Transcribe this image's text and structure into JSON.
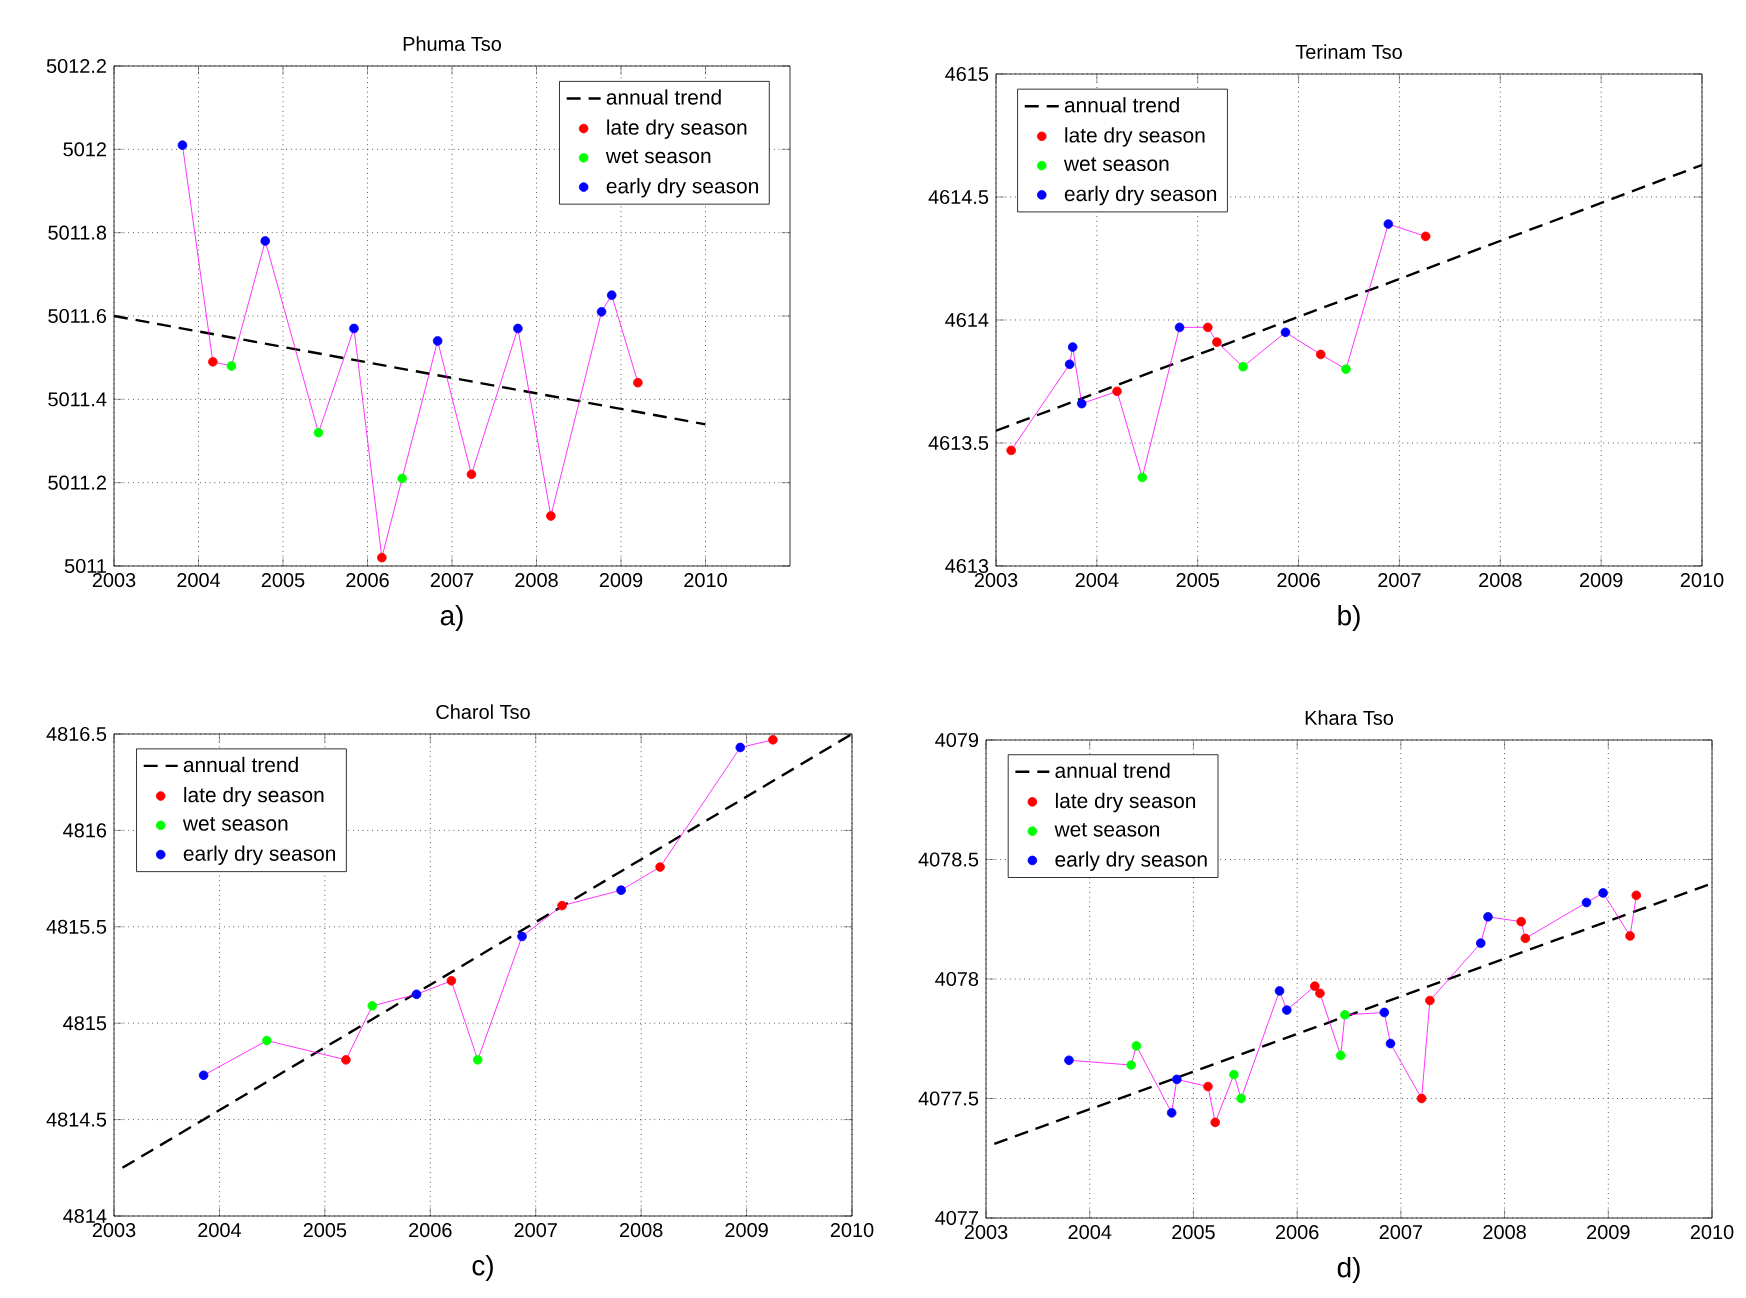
{
  "chart_data": [
    {
      "type": "line",
      "title": "Phuma Tso",
      "annotations": [
        "a)"
      ],
      "xlim": [
        2003,
        2011
      ],
      "ylim": [
        5011,
        5012.2
      ],
      "xticks": [
        2003,
        2004,
        2005,
        2006,
        2007,
        2008,
        2009,
        2010
      ],
      "yticks": [
        5011,
        5011.2,
        5011.4,
        5011.6,
        5011.8,
        5012,
        5012.2
      ],
      "grid": true,
      "legend": "top right",
      "series": [
        {
          "name": "annual trend",
          "type": "line",
          "color": "#000000",
          "line_style": "dashed",
          "marker": "none",
          "x": [
            2003,
            2010
          ],
          "values": [
            5011.6,
            5011.34
          ]
        },
        {
          "type": "line",
          "color": "#ff00ff",
          "line_style": "solid",
          "marker": "none",
          "x": [
            2003.81,
            2004.17,
            2004.39,
            2004.79,
            2005.42,
            2005.84,
            2006.17,
            2006.41,
            2006.83,
            2007.23,
            2007.78,
            2008.17,
            2008.77,
            2008.89,
            2009.2
          ],
          "values": [
            5012.01,
            5011.49,
            5011.48,
            5011.78,
            5011.32,
            5011.57,
            5011.02,
            5011.21,
            5011.54,
            5011.22,
            5011.57,
            5011.12,
            5011.61,
            5011.65,
            5011.44
          ]
        },
        {
          "name": "late dry season",
          "type": "scatter",
          "color": "#ff0000",
          "marker": "circle",
          "x": [
            2004.17,
            2006.17,
            2007.23,
            2008.17,
            2009.2
          ],
          "values": [
            5011.49,
            5011.02,
            5011.22,
            5011.12,
            5011.44
          ]
        },
        {
          "name": "wet season",
          "type": "scatter",
          "color": "#00ff00",
          "marker": "circle",
          "x": [
            2004.39,
            2005.42,
            2006.41
          ],
          "values": [
            5011.48,
            5011.32,
            5011.21
          ]
        },
        {
          "name": "early dry season",
          "type": "scatter",
          "color": "#0000ff",
          "marker": "circle",
          "x": [
            2003.81,
            2004.79,
            2005.84,
            2006.83,
            2007.78,
            2008.77,
            2008.89
          ],
          "values": [
            5012.01,
            5011.78,
            5011.57,
            5011.54,
            5011.57,
            5011.61,
            5011.65
          ]
        }
      ]
    },
    {
      "type": "line",
      "title": "Terinam Tso",
      "annotations": [
        "b)"
      ],
      "xlim": [
        2003,
        2010
      ],
      "ylim": [
        4613,
        4615
      ],
      "xticks": [
        2003,
        2004,
        2005,
        2006,
        2007,
        2008,
        2009,
        2010
      ],
      "yticks": [
        4613,
        4613.5,
        4614,
        4614.5,
        4615
      ],
      "grid": true,
      "legend": "top left",
      "series": [
        {
          "name": "annual trend",
          "type": "line",
          "color": "#000000",
          "line_style": "dashed",
          "marker": "none",
          "x": [
            2003,
            2010
          ],
          "values": [
            4613.55,
            4614.63
          ]
        },
        {
          "type": "line",
          "color": "#ff00ff",
          "line_style": "solid",
          "marker": "none",
          "x": [
            2003.15,
            2003.73,
            2003.76,
            2003.85,
            2004.2,
            2004.45,
            2004.82,
            2005.1,
            2005.19,
            2005.45,
            2005.87,
            2006.22,
            2006.47,
            2006.89,
            2007.26
          ],
          "values": [
            4613.47,
            4613.82,
            4613.89,
            4613.66,
            4613.71,
            4613.36,
            4613.97,
            4613.97,
            4613.91,
            4613.81,
            4613.95,
            4613.86,
            4613.8,
            4614.39,
            4614.34
          ]
        },
        {
          "name": "late dry season",
          "type": "scatter",
          "color": "#ff0000",
          "marker": "circle",
          "x": [
            2003.15,
            2004.2,
            2005.1,
            2005.19,
            2006.22,
            2007.26
          ],
          "values": [
            4613.47,
            4613.71,
            4613.97,
            4613.91,
            4613.86,
            4614.34
          ]
        },
        {
          "name": "wet season",
          "type": "scatter",
          "color": "#00ff00",
          "marker": "circle",
          "x": [
            2004.45,
            2005.45,
            2006.47
          ],
          "values": [
            4613.36,
            4613.81,
            4613.8
          ]
        },
        {
          "name": "early dry season",
          "type": "scatter",
          "color": "#0000ff",
          "marker": "circle",
          "x": [
            2003.73,
            2003.76,
            2003.85,
            2004.82,
            2005.87,
            2006.89
          ],
          "values": [
            4613.82,
            4613.89,
            4613.66,
            4613.97,
            4613.95,
            4614.39
          ]
        }
      ]
    },
    {
      "type": "line",
      "title": "Charol Tso",
      "annotations": [
        "c)"
      ],
      "xlim": [
        2003,
        2010
      ],
      "ylim": [
        4814,
        4816.5
      ],
      "xticks": [
        2003,
        2004,
        2005,
        2006,
        2007,
        2008,
        2009,
        2010
      ],
      "yticks": [
        4814,
        4814.5,
        4815,
        4815.5,
        4816,
        4816.5
      ],
      "grid": true,
      "legend": "top left",
      "series": [
        {
          "name": "annual trend",
          "type": "line",
          "color": "#000000",
          "line_style": "dashed",
          "marker": "none",
          "x": [
            2003.08,
            2010
          ],
          "values": [
            4814.25,
            4816.5
          ]
        },
        {
          "type": "line",
          "color": "#ff00ff",
          "line_style": "solid",
          "marker": "none",
          "x": [
            2003.85,
            2004.45,
            2005.2,
            2005.45,
            2005.87,
            2006.2,
            2006.45,
            2006.87,
            2007.25,
            2007.81,
            2008.18,
            2008.94,
            2009.25
          ],
          "values": [
            4814.73,
            4814.91,
            4814.81,
            4815.09,
            4815.15,
            4815.22,
            4814.81,
            4815.45,
            4815.61,
            4815.69,
            4815.81,
            4816.43,
            4816.47
          ]
        },
        {
          "name": "late dry season",
          "type": "scatter",
          "color": "#ff0000",
          "marker": "circle",
          "x": [
            2005.2,
            2006.2,
            2007.25,
            2008.18,
            2009.25
          ],
          "values": [
            4814.81,
            4815.22,
            4815.61,
            4815.81,
            4816.47
          ]
        },
        {
          "name": "wet season",
          "type": "scatter",
          "color": "#00ff00",
          "marker": "circle",
          "x": [
            2004.45,
            2005.45,
            2006.45
          ],
          "values": [
            4814.91,
            4815.09,
            4814.81
          ]
        },
        {
          "name": "early dry season",
          "type": "scatter",
          "color": "#0000ff",
          "marker": "circle",
          "x": [
            2003.85,
            2005.87,
            2006.87,
            2007.81,
            2008.94
          ],
          "values": [
            4814.73,
            4815.15,
            4815.45,
            4815.69,
            4816.43
          ]
        }
      ]
    },
    {
      "type": "line",
      "title": "Khara Tso",
      "annotations": [
        "d)"
      ],
      "xlim": [
        2003,
        2010
      ],
      "ylim": [
        4077,
        4079
      ],
      "xticks": [
        2003,
        2004,
        2005,
        2006,
        2007,
        2008,
        2009,
        2010
      ],
      "yticks": [
        4077,
        4077.5,
        4078,
        4078.5,
        4079
      ],
      "grid": true,
      "legend": "top left",
      "series": [
        {
          "name": "annual trend",
          "type": "line",
          "color": "#000000",
          "line_style": "dashed",
          "marker": "none",
          "x": [
            2003.08,
            2010
          ],
          "values": [
            4077.31,
            4078.4
          ]
        },
        {
          "type": "line",
          "color": "#ff00ff",
          "line_style": "solid",
          "marker": "none",
          "x": [
            2003.8,
            2004.4,
            2004.45,
            2004.79,
            2004.84,
            2005.14,
            2005.21,
            2005.39,
            2005.46,
            2005.83,
            2005.9,
            2006.17,
            2006.22,
            2006.42,
            2006.46,
            2006.84,
            2006.9,
            2007.2,
            2007.28,
            2007.77,
            2007.84,
            2008.16,
            2008.2,
            2008.79,
            2008.95,
            2009.21,
            2009.27
          ],
          "values": [
            4077.66,
            4077.64,
            4077.72,
            4077.44,
            4077.58,
            4077.55,
            4077.4,
            4077.6,
            4077.5,
            4077.95,
            4077.87,
            4077.97,
            4077.94,
            4077.68,
            4077.85,
            4077.86,
            4077.73,
            4077.5,
            4077.91,
            4078.15,
            4078.26,
            4078.24,
            4078.17,
            4078.32,
            4078.36,
            4078.18,
            4078.35
          ]
        },
        {
          "name": "late dry season",
          "type": "scatter",
          "color": "#ff0000",
          "marker": "circle",
          "x": [
            2005.14,
            2005.21,
            2006.17,
            2006.22,
            2007.2,
            2007.28,
            2008.16,
            2008.2,
            2009.21,
            2009.27
          ],
          "values": [
            4077.55,
            4077.4,
            4077.97,
            4077.94,
            4077.5,
            4077.91,
            4078.24,
            4078.17,
            4078.18,
            4078.35
          ]
        },
        {
          "name": "wet season",
          "type": "scatter",
          "color": "#00ff00",
          "marker": "circle",
          "x": [
            2004.4,
            2004.45,
            2005.39,
            2005.46,
            2006.42,
            2006.46
          ],
          "values": [
            4077.64,
            4077.72,
            4077.6,
            4077.5,
            4077.68,
            4077.85
          ]
        },
        {
          "name": "early dry season",
          "type": "scatter",
          "color": "#0000ff",
          "marker": "circle",
          "x": [
            2003.8,
            2004.79,
            2004.84,
            2005.83,
            2005.9,
            2006.84,
            2006.9,
            2007.77,
            2007.84,
            2008.79,
            2008.95
          ],
          "values": [
            4077.66,
            4077.44,
            4077.58,
            4077.95,
            4077.87,
            4077.86,
            4077.73,
            4078.15,
            4078.26,
            4078.32,
            4078.36
          ]
        }
      ]
    }
  ]
}
